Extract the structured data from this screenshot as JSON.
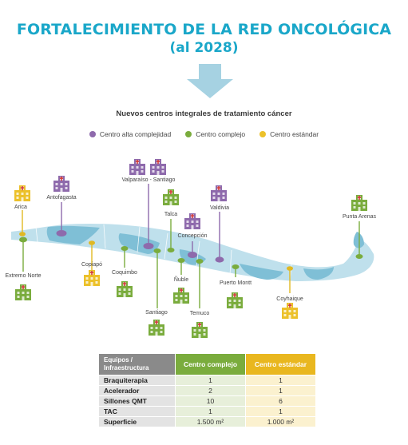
{
  "title_line1": "FORTALECIMIENTO DE LA RED ONCOLÓGICA",
  "title_line2": "(al 2028)",
  "subtitle": "Nuevos centros integrales de tratamiento cáncer",
  "legend": [
    {
      "label": "Centro alta complejidad",
      "color": "#8e6aac"
    },
    {
      "label": "Centro complejo",
      "color": "#7aac3d"
    },
    {
      "label": "Centro estándar",
      "color": "#ecc12a"
    }
  ],
  "colors": {
    "title": "#1aa7c9",
    "arrow": "#a6d2e2",
    "map_light": "#bfe0ec",
    "map_dark": "#7fbfd6"
  },
  "map_labels": {
    "arica": "Arica",
    "antofagasta": "Antofagasta",
    "valparaiso_santiago": "Valparaíso - Santiago",
    "talca": "Talca",
    "valdivia": "Valdivia",
    "concepcion": "Concepción",
    "punta_arenas": "Punta Arenas",
    "extremo_norte": "Extremo Norte",
    "copiapo": "Copiapó",
    "coquimbo": "Coquimbo",
    "nuble": "Ñuble",
    "santiago": "Santiago",
    "temuco": "Temuco",
    "puerto_montt": "Puerto Montt",
    "coyhaique": "Coyhaique"
  },
  "table": {
    "header": [
      "Equipos / Infraestructura",
      "Centro complejo",
      "Centro estándar"
    ],
    "rows": [
      [
        "Braquiterapia",
        "1",
        "1"
      ],
      [
        "Acelerador",
        "2",
        "1"
      ],
      [
        "Sillones QMT",
        "10",
        "6"
      ],
      [
        "TAC",
        "1",
        "1"
      ],
      [
        "Superficie",
        "1.500 m²",
        "1.000 m²"
      ]
    ]
  }
}
